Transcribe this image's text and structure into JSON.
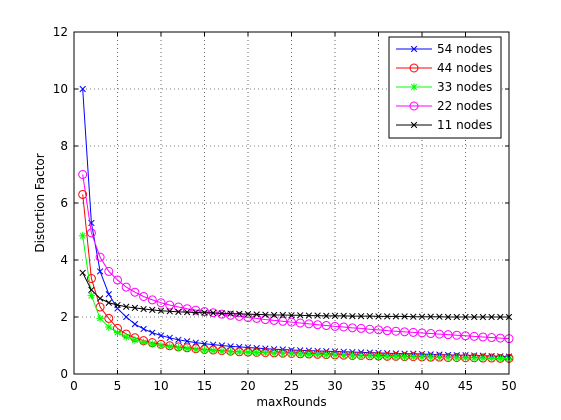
{
  "chart_data": {
    "type": "line",
    "title": "",
    "xlabel": "maxRounds",
    "ylabel": "Distortion Factor",
    "xlim": [
      0,
      50
    ],
    "ylim": [
      0,
      12
    ],
    "xticks": [
      0,
      5,
      10,
      15,
      20,
      25,
      30,
      35,
      40,
      45,
      50
    ],
    "yticks": [
      0,
      2,
      4,
      6,
      8,
      10,
      12
    ],
    "grid": true,
    "legend_position": "top-right",
    "x": [
      1,
      2,
      3,
      4,
      5,
      6,
      7,
      8,
      9,
      10,
      11,
      12,
      13,
      14,
      15,
      16,
      17,
      18,
      19,
      20,
      21,
      22,
      23,
      24,
      25,
      26,
      27,
      28,
      29,
      30,
      31,
      32,
      33,
      34,
      35,
      36,
      37,
      38,
      39,
      40,
      41,
      42,
      43,
      44,
      45,
      46,
      47,
      48,
      49,
      50
    ],
    "series": [
      {
        "name": "54 nodes",
        "color": "#0000ff",
        "marker": "x",
        "values": [
          10.0,
          5.3,
          3.6,
          2.8,
          2.3,
          2.0,
          1.75,
          1.58,
          1.45,
          1.35,
          1.27,
          1.2,
          1.15,
          1.1,
          1.06,
          1.03,
          1.0,
          0.97,
          0.95,
          0.93,
          0.91,
          0.89,
          0.87,
          0.86,
          0.84,
          0.83,
          0.82,
          0.81,
          0.8,
          0.79,
          0.78,
          0.77,
          0.76,
          0.75,
          0.74,
          0.73,
          0.72,
          0.71,
          0.71,
          0.7,
          0.69,
          0.68,
          0.67,
          0.66,
          0.66,
          0.65,
          0.64,
          0.63,
          0.62,
          0.61
        ]
      },
      {
        "name": "44 nodes",
        "color": "#ff0000",
        "marker": "circle",
        "values": [
          6.3,
          3.35,
          2.35,
          1.95,
          1.6,
          1.4,
          1.27,
          1.17,
          1.1,
          1.04,
          0.99,
          0.95,
          0.92,
          0.89,
          0.86,
          0.84,
          0.82,
          0.8,
          0.78,
          0.77,
          0.76,
          0.75,
          0.74,
          0.73,
          0.72,
          0.71,
          0.7,
          0.69,
          0.68,
          0.67,
          0.66,
          0.65,
          0.65,
          0.64,
          0.63,
          0.62,
          0.62,
          0.61,
          0.61,
          0.6,
          0.59,
          0.59,
          0.58,
          0.58,
          0.57,
          0.57,
          0.56,
          0.56,
          0.55,
          0.55
        ]
      },
      {
        "name": "33 nodes",
        "color": "#00ff00",
        "marker": "star",
        "values": [
          4.85,
          2.75,
          1.95,
          1.65,
          1.45,
          1.3,
          1.19,
          1.11,
          1.05,
          1.0,
          0.96,
          0.92,
          0.89,
          0.86,
          0.84,
          0.82,
          0.8,
          0.78,
          0.77,
          0.76,
          0.75,
          0.74,
          0.73,
          0.72,
          0.71,
          0.7,
          0.69,
          0.68,
          0.67,
          0.66,
          0.65,
          0.64,
          0.63,
          0.63,
          0.62,
          0.61,
          0.61,
          0.6,
          0.6,
          0.59,
          0.59,
          0.58,
          0.58,
          0.57,
          0.57,
          0.56,
          0.56,
          0.55,
          0.55,
          0.54
        ]
      },
      {
        "name": "22 nodes",
        "color": "#ff00ff",
        "marker": "circle",
        "values": [
          7.0,
          4.95,
          4.1,
          3.6,
          3.3,
          3.05,
          2.87,
          2.72,
          2.6,
          2.5,
          2.42,
          2.35,
          2.29,
          2.24,
          2.19,
          2.15,
          2.1,
          2.06,
          2.02,
          1.98,
          1.95,
          1.91,
          1.88,
          1.85,
          1.82,
          1.79,
          1.76,
          1.73,
          1.7,
          1.67,
          1.65,
          1.62,
          1.6,
          1.57,
          1.55,
          1.52,
          1.5,
          1.48,
          1.46,
          1.44,
          1.42,
          1.4,
          1.38,
          1.36,
          1.34,
          1.32,
          1.3,
          1.28,
          1.26,
          1.24
        ]
      },
      {
        "name": "11 nodes",
        "color": "#000000",
        "marker": "x",
        "values": [
          3.55,
          2.95,
          2.65,
          2.5,
          2.42,
          2.36,
          2.32,
          2.28,
          2.25,
          2.22,
          2.2,
          2.18,
          2.17,
          2.16,
          2.15,
          2.14,
          2.13,
          2.12,
          2.11,
          2.1,
          2.09,
          2.08,
          2.07,
          2.07,
          2.06,
          2.06,
          2.05,
          2.05,
          2.04,
          2.04,
          2.04,
          2.03,
          2.03,
          2.03,
          2.02,
          2.02,
          2.02,
          2.02,
          2.01,
          2.01,
          2.01,
          2.01,
          2.0,
          2.0,
          2.0,
          2.0,
          2.0,
          2.0,
          2.0,
          2.0
        ]
      }
    ]
  }
}
